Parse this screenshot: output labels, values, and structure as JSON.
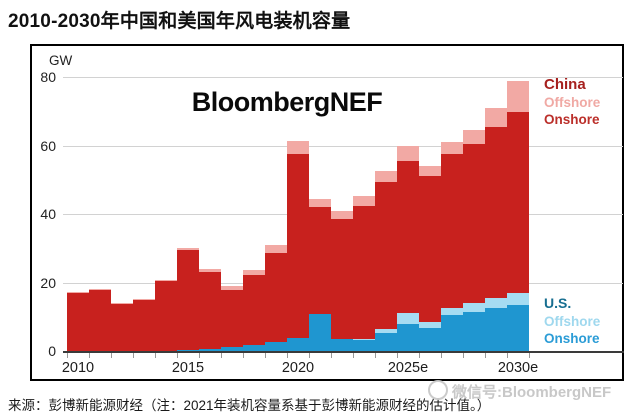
{
  "page": {
    "title": "2010-2030年中国和美国年风电装机容量",
    "source_note": "来源：彭博新能源财经（注：2021年装机容量系基于彭博新能源财经的估计值。）",
    "chart_watermark": "BloombergNEF",
    "wechat_watermark": "微信号:BloombergNEF"
  },
  "legend": {
    "china": {
      "title": "China",
      "offshore": "Offshore",
      "onshore": "Onshore"
    },
    "us": {
      "title": "U.S.",
      "offshore": "Offshore",
      "onshore": "Onshore"
    }
  },
  "colors": {
    "china_onshore": "#c8211e",
    "china_offshore": "#f2a9a4",
    "us_onshore": "#1f96d0",
    "us_offshore": "#a6dcf2",
    "legend_china_title": "#a6201e",
    "legend_china_offshore": "#f0a9a4",
    "legend_china_onshore": "#bb2f2a",
    "legend_us_title": "#176e90",
    "legend_us_offshore": "#9fd8ee",
    "legend_us_onshore": "#2b9cd6"
  },
  "chart_data": {
    "type": "bar",
    "stacked": true,
    "unit": "GW",
    "title": "2010-2030年中国和美国年风电装机容量",
    "categories": [
      2010,
      2011,
      2012,
      2013,
      2014,
      2015,
      2016,
      2017,
      2018,
      2019,
      2020,
      2021,
      2022,
      2023,
      2024,
      2025,
      2026,
      2027,
      2028,
      2029,
      2030
    ],
    "x_tick_labels": [
      "2010",
      "2015",
      "2020",
      "2025e",
      "2030e"
    ],
    "x_tick_years": [
      2010,
      2015,
      2020,
      2025,
      2030
    ],
    "y_axis": {
      "label": "GW",
      "ticks": [
        0,
        20,
        40,
        60,
        80
      ],
      "max": 82
    },
    "legend_position": "right",
    "grid": true,
    "stack_order_bottom_to_top": [
      "us_onshore",
      "us_offshore",
      "china_onshore",
      "china_offshore"
    ],
    "series": [
      {
        "key": "us_onshore",
        "name": "U.S. Onshore",
        "values": [
          0,
          0,
          0,
          0,
          0,
          0.3,
          0.7,
          1.1,
          1.8,
          2.5,
          3.9,
          10.8,
          3.5,
          3.2,
          5.4,
          8.0,
          6.8,
          10.5,
          11.5,
          12.5,
          13.5
        ]
      },
      {
        "key": "us_offshore",
        "name": "U.S. Offshore",
        "values": [
          0,
          0,
          0,
          0,
          0,
          0,
          0,
          0,
          0,
          0,
          0,
          0,
          0,
          0.3,
          1.0,
          3.0,
          1.7,
          2.0,
          2.5,
          3.0,
          3.5
        ]
      },
      {
        "key": "china_onshore",
        "name": "China Onshore",
        "values": [
          17.0,
          18.0,
          13.8,
          15.0,
          20.5,
          29.2,
          22.5,
          16.8,
          20.4,
          26.1,
          53.6,
          31.2,
          35.0,
          39.0,
          42.9,
          44.6,
          42.7,
          45.0,
          46.5,
          50.0,
          53.0
        ]
      },
      {
        "key": "china_offshore",
        "name": "China Offshore",
        "values": [
          0.2,
          0.2,
          0.2,
          0.3,
          0.4,
          0.6,
          0.8,
          1.2,
          1.5,
          2.3,
          4.0,
          2.4,
          2.5,
          2.9,
          3.4,
          4.4,
          2.9,
          3.5,
          4.0,
          5.5,
          9.0
        ]
      }
    ]
  }
}
